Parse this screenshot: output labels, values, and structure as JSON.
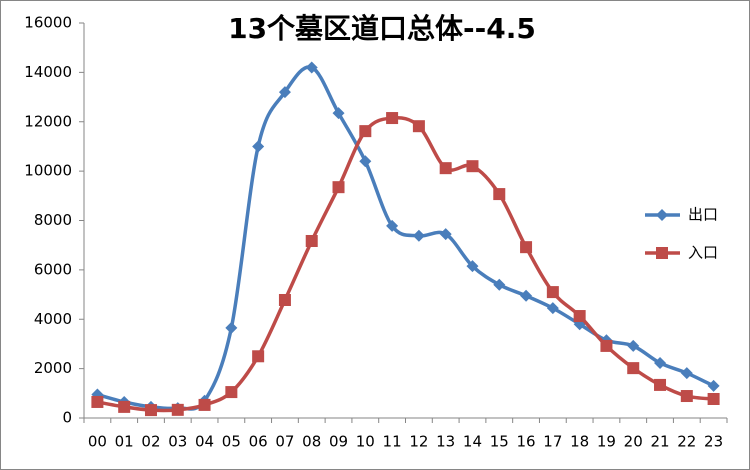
{
  "chart_data": {
    "type": "line",
    "title": "13个墓区道口总体--4.5",
    "categories": [
      "00",
      "01",
      "02",
      "03",
      "04",
      "05",
      "06",
      "07",
      "08",
      "09",
      "10",
      "11",
      "12",
      "13",
      "14",
      "15",
      "16",
      "17",
      "18",
      "19",
      "20",
      "21",
      "22",
      "23"
    ],
    "series": [
      {
        "name": "出口",
        "color": "#4a7ebb",
        "marker": "diamond",
        "values": [
          950,
          650,
          450,
          400,
          700,
          3650,
          11000,
          13200,
          14200,
          12350,
          10400,
          7780,
          7380,
          7450,
          6150,
          5400,
          4950,
          4450,
          3800,
          3150,
          2920,
          2230,
          1820,
          1300
        ]
      },
      {
        "name": "入口",
        "color": "#be4b48",
        "marker": "square",
        "values": [
          650,
          450,
          320,
          330,
          530,
          1050,
          2500,
          4780,
          7170,
          9350,
          11620,
          12150,
          11820,
          10120,
          10200,
          9070,
          6920,
          5100,
          4130,
          2920,
          2020,
          1340,
          890,
          770
        ]
      }
    ],
    "ylim": [
      0,
      16000
    ],
    "yticks": [
      0,
      2000,
      4000,
      6000,
      8000,
      10000,
      12000,
      14000,
      16000
    ],
    "smooth": true,
    "grid": false,
    "legend": "right"
  }
}
